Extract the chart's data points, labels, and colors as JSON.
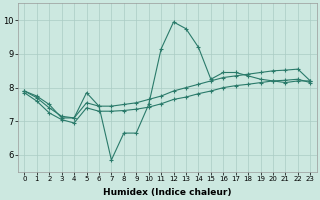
{
  "xlabel": "Humidex (Indice chaleur)",
  "ylabel": "",
  "xlim": [
    -0.5,
    23.5
  ],
  "ylim": [
    5.5,
    10.5
  ],
  "xtick_labels": [
    "0",
    "1",
    "2",
    "3",
    "4",
    "5",
    "6",
    "7",
    "8",
    "9",
    "10",
    "11",
    "12",
    "13",
    "14",
    "15",
    "16",
    "17",
    "18",
    "19",
    "20",
    "21",
    "22",
    "23"
  ],
  "ytick_labels": [
    "6",
    "7",
    "8",
    "9",
    "10"
  ],
  "yticks": [
    6,
    7,
    8,
    9,
    10
  ],
  "bg_color": "#cce8e0",
  "grid_color": "#aaccC4",
  "line_color": "#2a7a6a",
  "series": [
    {
      "x": [
        0,
        1,
        2,
        3,
        4,
        5,
        6,
        7,
        8,
        9,
        10,
        11,
        12,
        13,
        14,
        15,
        16,
        17,
        18,
        19,
        20,
        21,
        22,
        23
      ],
      "y": [
        7.9,
        7.75,
        7.5,
        7.1,
        7.1,
        7.85,
        7.45,
        5.85,
        6.65,
        6.65,
        7.5,
        9.15,
        9.95,
        9.75,
        9.2,
        8.25,
        8.45,
        8.45,
        8.35,
        8.25,
        8.2,
        8.15,
        8.2,
        8.2
      ]
    },
    {
      "x": [
        0,
        1,
        2,
        3,
        4,
        5,
        6,
        7,
        8,
        9,
        10,
        11,
        12,
        13,
        14,
        15,
        16,
        17,
        18,
        19,
        20,
        21,
        22,
        23
      ],
      "y": [
        7.9,
        7.7,
        7.4,
        7.15,
        7.1,
        7.55,
        7.45,
        7.45,
        7.5,
        7.55,
        7.65,
        7.75,
        7.9,
        8.0,
        8.1,
        8.2,
        8.3,
        8.35,
        8.4,
        8.45,
        8.5,
        8.52,
        8.55,
        8.2
      ]
    },
    {
      "x": [
        0,
        1,
        2,
        3,
        4,
        5,
        6,
        7,
        8,
        9,
        10,
        11,
        12,
        13,
        14,
        15,
        16,
        17,
        18,
        19,
        20,
        21,
        22,
        23
      ],
      "y": [
        7.85,
        7.6,
        7.25,
        7.05,
        6.95,
        7.4,
        7.3,
        7.3,
        7.32,
        7.36,
        7.42,
        7.52,
        7.65,
        7.72,
        7.82,
        7.9,
        8.0,
        8.06,
        8.1,
        8.15,
        8.2,
        8.22,
        8.25,
        8.15
      ]
    }
  ]
}
